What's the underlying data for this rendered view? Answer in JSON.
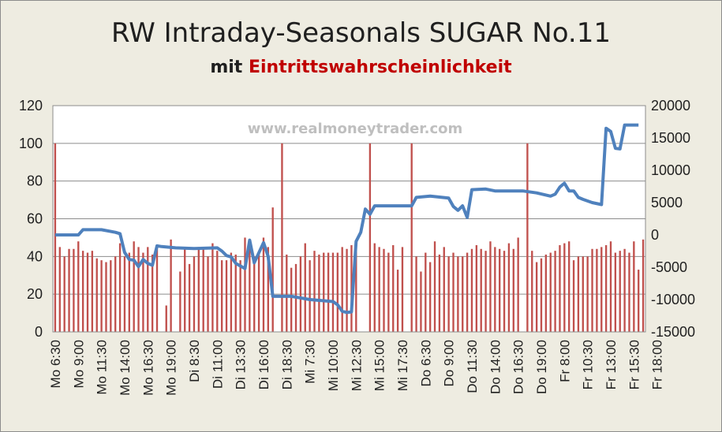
{
  "title": "RW Intraday-Seasonals   SUGAR No.11",
  "subtitle_prefix": "mit ",
  "subtitle_highlight": "Eintrittswahrscheinlichkeit",
  "watermark": "www.realmoneytrader.com",
  "colors": {
    "background": "#eeece1",
    "plot": "#ffffff",
    "bars": "#c0504d",
    "line": "#4f81bd",
    "highlight": "#c00000"
  },
  "chart_data": {
    "type": "bar+line",
    "y_left": {
      "min": 0,
      "max": 120,
      "ticks": [
        0,
        20,
        40,
        60,
        80,
        100,
        120
      ]
    },
    "y_right": {
      "min": -15000,
      "max": 20000,
      "ticks": [
        -15000,
        -10000,
        -5000,
        0,
        5000,
        10000,
        15000,
        20000
      ]
    },
    "grid": true,
    "x_tick_labels": [
      "Mo  6:30",
      "Mo  9:00",
      "Mo  11:30",
      "Mo  14:00",
      "Mo  16:30",
      "Mo  19:00",
      "Di  8:30",
      "Di  11:00",
      "Di  13:30",
      "Di  16:00",
      "Di  18:30",
      "Mi  7:30",
      "Mi  10:00",
      "Mi  12:30",
      "Mi  15:00",
      "Mi  17:30",
      "Do  6:30",
      "Do  9:00",
      "Do  11:30",
      "Do  14:00",
      "Do  16:30",
      "Do  19:00",
      "Fr  8:00",
      "Fr  10:30",
      "Fr  13:00",
      "Fr  15:30",
      "Fr  18:00"
    ],
    "bar_series": {
      "axis": "left",
      "values": [
        100,
        45,
        40,
        44,
        44,
        48,
        43,
        42,
        43,
        39,
        38,
        37,
        38,
        40,
        47,
        40,
        42,
        48,
        45,
        42,
        45,
        41,
        45,
        0,
        14,
        49,
        0,
        32,
        45,
        36,
        40,
        45,
        45,
        40,
        47,
        43,
        38,
        38,
        42,
        41,
        38,
        50,
        45,
        40,
        42,
        50,
        45,
        66,
        0,
        100,
        41,
        34,
        36,
        40,
        47,
        38,
        43,
        41,
        42,
        42,
        42,
        42,
        45,
        44,
        46,
        45,
        0,
        0,
        100,
        47,
        45,
        44,
        42,
        46,
        33,
        45,
        0,
        100,
        40,
        32,
        42,
        37,
        48,
        41,
        45,
        40,
        42,
        40,
        40,
        42,
        44,
        46,
        44,
        43,
        48,
        45,
        44,
        43,
        47,
        44,
        50,
        0,
        100,
        43,
        37,
        39,
        41,
        42,
        43,
        46,
        47,
        48,
        38,
        40,
        40,
        40,
        44,
        44,
        45,
        46,
        48,
        42,
        43,
        44,
        42,
        48,
        33,
        49
      ]
    },
    "line_series": {
      "axis": "right",
      "points": [
        [
          0,
          0
        ],
        [
          5,
          0
        ],
        [
          6,
          800
        ],
        [
          10,
          800
        ],
        [
          13,
          400
        ],
        [
          14,
          200
        ],
        [
          15,
          -2700
        ],
        [
          16,
          -3800
        ],
        [
          17,
          -3900
        ],
        [
          18,
          -4900
        ],
        [
          19,
          -3800
        ],
        [
          20,
          -4400
        ],
        [
          21,
          -4700
        ],
        [
          22,
          -1700
        ],
        [
          23,
          -1800
        ],
        [
          26,
          -2000
        ],
        [
          30,
          -2100
        ],
        [
          35,
          -2000
        ],
        [
          36,
          -2500
        ],
        [
          37,
          -3200
        ],
        [
          38,
          -3400
        ],
        [
          39,
          -4400
        ],
        [
          40,
          -4800
        ],
        [
          41,
          -5200
        ],
        [
          42,
          -800
        ],
        [
          43,
          -4300
        ],
        [
          45,
          -1200
        ],
        [
          46,
          -3300
        ],
        [
          47,
          -9500
        ],
        [
          51,
          -9500
        ],
        [
          55,
          -10000
        ],
        [
          60,
          -10300
        ],
        [
          61,
          -10800
        ],
        [
          62,
          -11800
        ],
        [
          63,
          -12000
        ],
        [
          64,
          -11900
        ],
        [
          65,
          -1000
        ],
        [
          66,
          400
        ],
        [
          67,
          4000
        ],
        [
          68,
          3200
        ],
        [
          69,
          4500
        ],
        [
          77,
          4500
        ],
        [
          78,
          5800
        ],
        [
          81,
          6000
        ],
        [
          85,
          5700
        ],
        [
          86,
          4400
        ],
        [
          87,
          3800
        ],
        [
          88,
          4500
        ],
        [
          89,
          2700
        ],
        [
          90,
          7000
        ],
        [
          93,
          7100
        ],
        [
          95,
          6800
        ],
        [
          100,
          6800
        ],
        [
          101,
          6800
        ],
        [
          104,
          6500
        ],
        [
          107,
          6000
        ],
        [
          108,
          6300
        ],
        [
          109,
          7400
        ],
        [
          110,
          8000
        ],
        [
          111,
          6800
        ],
        [
          112,
          6800
        ],
        [
          113,
          5800
        ],
        [
          114,
          5500
        ],
        [
          116,
          5000
        ],
        [
          118,
          4700
        ],
        [
          119,
          16500
        ],
        [
          120,
          16000
        ],
        [
          121,
          13400
        ],
        [
          122,
          13300
        ],
        [
          123,
          17000
        ],
        [
          126,
          17000
        ]
      ]
    }
  }
}
